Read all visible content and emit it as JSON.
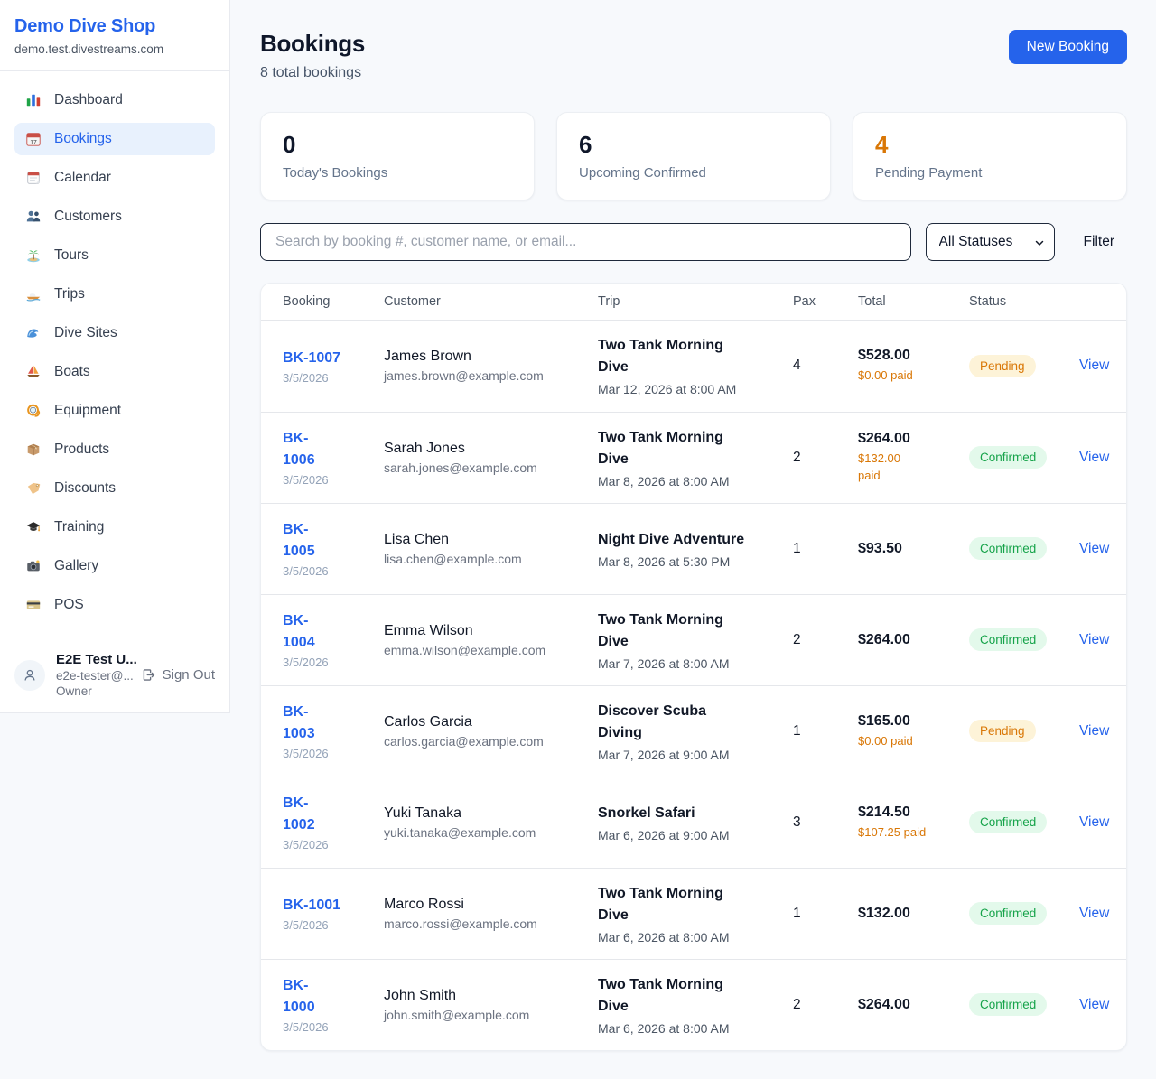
{
  "sidebar": {
    "brand": {
      "name": "Demo Dive Shop",
      "domain": "demo.test.divestreams.com"
    },
    "items": [
      {
        "label": "Dashboard",
        "icon": "bar-chart-icon",
        "active": false
      },
      {
        "label": "Bookings",
        "icon": "calendar-date-icon",
        "active": true
      },
      {
        "label": "Calendar",
        "icon": "calendar-tearoff-icon",
        "active": false
      },
      {
        "label": "Customers",
        "icon": "people-icon",
        "active": false
      },
      {
        "label": "Tours",
        "icon": "island-icon",
        "active": false
      },
      {
        "label": "Trips",
        "icon": "speedboat-icon",
        "active": false
      },
      {
        "label": "Dive Sites",
        "icon": "wave-icon",
        "active": false
      },
      {
        "label": "Boats",
        "icon": "sailboat-icon",
        "active": false
      },
      {
        "label": "Equipment",
        "icon": "diving-mask-icon",
        "active": false
      },
      {
        "label": "Products",
        "icon": "package-icon",
        "active": false
      },
      {
        "label": "Discounts",
        "icon": "tag-icon",
        "active": false
      },
      {
        "label": "Training",
        "icon": "graduation-cap-icon",
        "active": false
      },
      {
        "label": "Gallery",
        "icon": "camera-icon",
        "active": false
      },
      {
        "label": "POS",
        "icon": "credit-card-icon",
        "active": false
      }
    ],
    "user": {
      "name": "E2E Test U...",
      "email": "e2e-tester@...",
      "role": "Owner",
      "sign_out_label": "Sign Out",
      "avatar_icon": "user-icon",
      "sign_out_icon": "sign-out-icon"
    }
  },
  "header": {
    "title": "Bookings",
    "subtitle": "8 total bookings",
    "new_booking_label": "New Booking"
  },
  "stats": [
    {
      "value": "0",
      "label": "Today's Bookings",
      "accent": "dark"
    },
    {
      "value": "6",
      "label": "Upcoming Confirmed",
      "accent": "dark"
    },
    {
      "value": "4",
      "label": "Pending Payment",
      "accent": "orange"
    }
  ],
  "filters": {
    "search_placeholder": "Search by booking #, customer name, or email...",
    "status_selected": "All Statuses",
    "filter_label": "Filter",
    "chevron_icon": "chevron-down-icon"
  },
  "table": {
    "columns": [
      "Booking",
      "Customer",
      "Trip",
      "Pax",
      "Total",
      "Status"
    ],
    "view_label": "View",
    "rows": [
      {
        "id": "BK-1007",
        "date": "3/5/2026",
        "customer": "James Brown",
        "email": "james.brown@example.com",
        "trip": "Two Tank Morning\nDive",
        "datetime": "Mar 12, 2026 at 8:00 AM",
        "pax": "4",
        "total": "$528.00",
        "paid": "$0.00 paid",
        "status": "Pending"
      },
      {
        "id": "BK-\n1006",
        "date": "3/5/2026",
        "customer": "Sarah Jones",
        "email": "sarah.jones@example.com",
        "trip": "Two Tank Morning\nDive",
        "datetime": "Mar 8, 2026 at 8:00 AM",
        "pax": "2",
        "total": "$264.00",
        "paid": "$132.00\npaid",
        "status": "Confirmed"
      },
      {
        "id": "BK-\n1005",
        "date": "3/5/2026",
        "customer": "Lisa Chen",
        "email": "lisa.chen@example.com",
        "trip": "Night Dive Adventure",
        "datetime": "Mar 8, 2026 at 5:30 PM",
        "pax": "1",
        "total": "$93.50",
        "paid": "",
        "status": "Confirmed"
      },
      {
        "id": "BK-\n1004",
        "date": "3/5/2026",
        "customer": "Emma Wilson",
        "email": "emma.wilson@example.com",
        "trip": "Two Tank Morning\nDive",
        "datetime": "Mar 7, 2026 at 8:00 AM",
        "pax": "2",
        "total": "$264.00",
        "paid": "",
        "status": "Confirmed"
      },
      {
        "id": "BK-\n1003",
        "date": "3/5/2026",
        "customer": "Carlos Garcia",
        "email": "carlos.garcia@example.com",
        "trip": "Discover Scuba\nDiving",
        "datetime": "Mar 7, 2026 at 9:00 AM",
        "pax": "1",
        "total": "$165.00",
        "paid": "$0.00 paid",
        "status": "Pending"
      },
      {
        "id": "BK-\n1002",
        "date": "3/5/2026",
        "customer": "Yuki Tanaka",
        "email": "yuki.tanaka@example.com",
        "trip": "Snorkel Safari",
        "datetime": "Mar 6, 2026 at 9:00 AM",
        "pax": "3",
        "total": "$214.50",
        "paid": "$107.25 paid",
        "status": "Confirmed"
      },
      {
        "id": "BK-1001",
        "date": "3/5/2026",
        "customer": "Marco Rossi",
        "email": "marco.rossi@example.com",
        "trip": "Two Tank Morning\nDive",
        "datetime": "Mar 6, 2026 at 8:00 AM",
        "pax": "1",
        "total": "$132.00",
        "paid": "",
        "status": "Confirmed"
      },
      {
        "id": "BK-\n1000",
        "date": "3/5/2026",
        "customer": "John Smith",
        "email": "john.smith@example.com",
        "trip": "Two Tank Morning\nDive",
        "datetime": "Mar 6, 2026 at 8:00 AM",
        "pax": "2",
        "total": "$264.00",
        "paid": "",
        "status": "Confirmed"
      }
    ]
  },
  "colors": {
    "accent": "#2563eb",
    "pending_text": "#d97706",
    "pending_bg": "#fdf3d8",
    "confirmed_text": "#16a34a",
    "confirmed_bg": "#e3f9eb",
    "page_bg": "#f7f9fc"
  }
}
